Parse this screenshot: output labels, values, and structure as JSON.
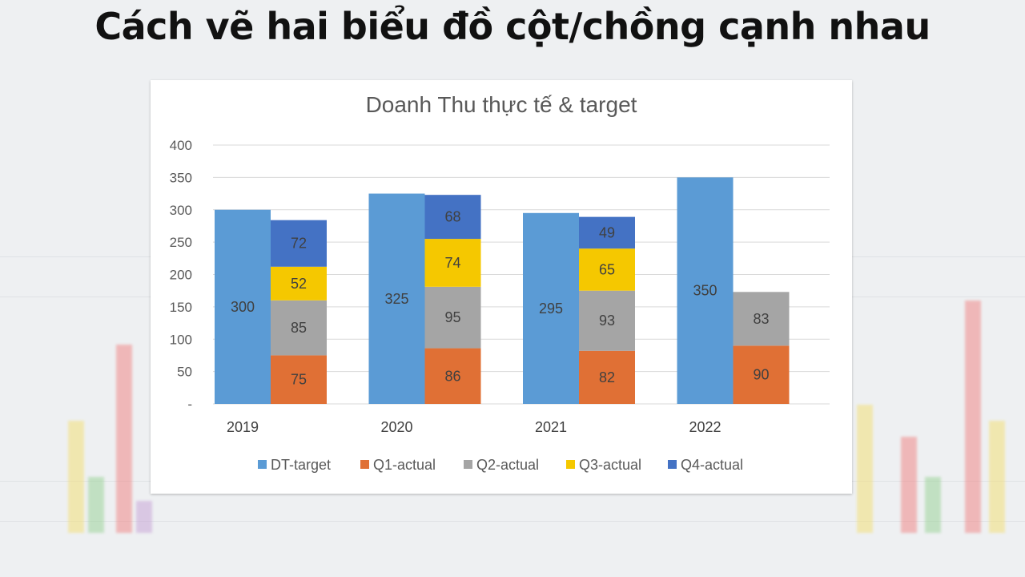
{
  "headline": "Cách vẽ hai biểu đồ cột/chồng cạnh nhau",
  "colors": {
    "dt_target": "#5b9bd5",
    "q1": "#e07035",
    "q2": "#a5a5a5",
    "q3": "#f5c800",
    "q4": "#4472c4"
  },
  "chart_data": {
    "type": "bar",
    "subtype": "clustered + stacked",
    "title": "Doanh Thu thực tế & target",
    "categories": [
      "2019",
      "2020",
      "2021",
      "2022"
    ],
    "ylim": [
      0,
      400
    ],
    "yticks": [
      0,
      50,
      100,
      150,
      200,
      250,
      300,
      350,
      400
    ],
    "ytick_labels": [
      "-",
      "50",
      "100",
      "150",
      "200",
      "250",
      "300",
      "350",
      "400"
    ],
    "grid": true,
    "legend_position": "bottom",
    "target_series": {
      "name": "DT-target",
      "values": [
        300,
        325,
        295,
        350
      ]
    },
    "stacked_series": [
      {
        "name": "Q1-actual",
        "values": [
          75,
          86,
          82,
          90
        ]
      },
      {
        "name": "Q2-actual",
        "values": [
          85,
          95,
          93,
          83
        ]
      },
      {
        "name": "Q3-actual",
        "values": [
          52,
          74,
          65,
          null
        ]
      },
      {
        "name": "Q4-actual",
        "values": [
          72,
          68,
          49,
          null
        ]
      }
    ]
  }
}
